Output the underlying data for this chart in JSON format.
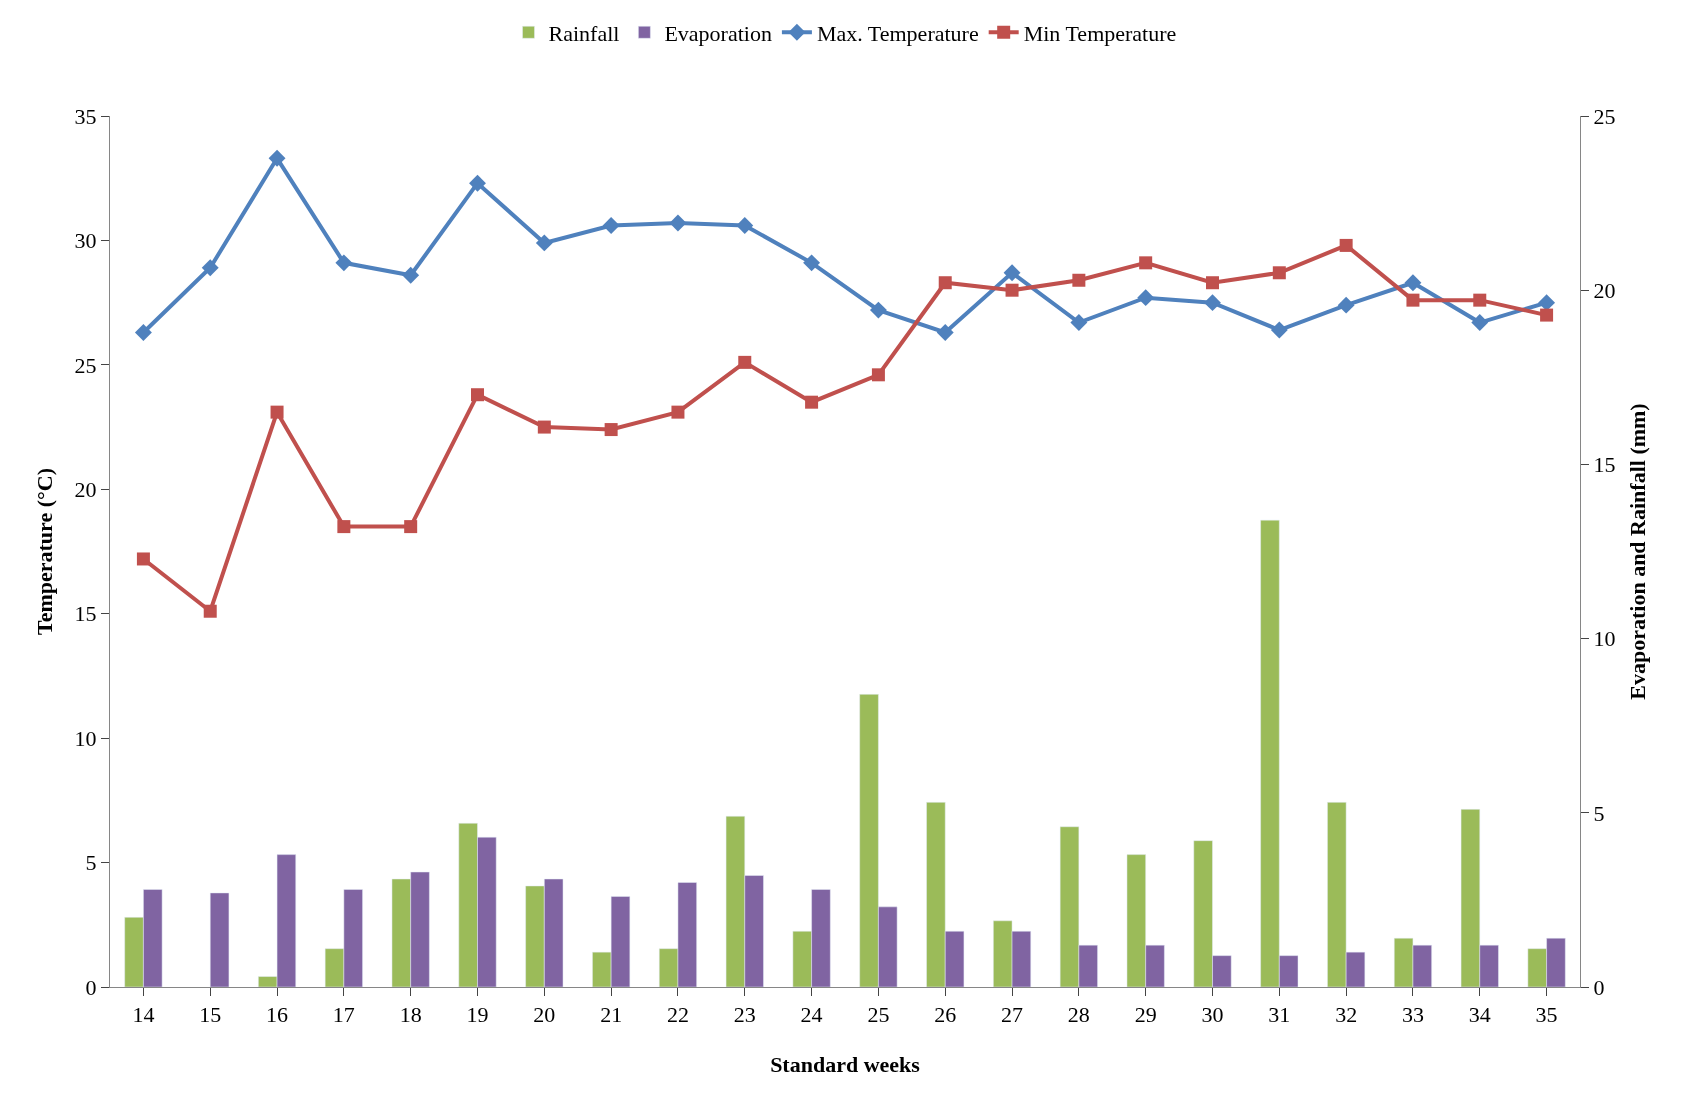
{
  "chart_data": {
    "type": "bar",
    "xlabel": "Standard weeks",
    "ylabel": "Temperature (°C)",
    "y2label": "Evaporation and Rainfall (mm)",
    "categories": [
      "14",
      "15",
      "16",
      "17",
      "18",
      "19",
      "20",
      "21",
      "22",
      "23",
      "24",
      "25",
      "26",
      "27",
      "28",
      "29",
      "30",
      "31",
      "32",
      "33",
      "34",
      "35"
    ],
    "series": [
      {
        "name": "Rainfall",
        "axis": "y2",
        "color": "#9bbb59",
        "values": [
          2.0,
          null,
          0.3,
          1.1,
          3.1,
          4.7,
          2.9,
          1.0,
          1.1,
          4.9,
          1.6,
          8.4,
          5.3,
          1.9,
          4.6,
          3.8,
          4.2,
          13.4,
          5.3,
          1.4,
          5.1,
          1.1
        ]
      },
      {
        "name": "Evaporation",
        "axis": "y2",
        "color": "#8064a2",
        "values": [
          2.8,
          2.7,
          3.8,
          2.8,
          3.3,
          4.3,
          3.1,
          2.6,
          3.0,
          3.2,
          2.8,
          2.3,
          1.6,
          1.6,
          1.2,
          1.2,
          0.9,
          0.9,
          1.0,
          1.2,
          1.2,
          1.4
        ]
      },
      {
        "name": "Max. Temperature",
        "type": "line",
        "marker": "diamond",
        "color": "#4f81bd",
        "values": [
          26.3,
          28.9,
          33.3,
          29.1,
          28.6,
          32.3,
          29.9,
          30.6,
          30.7,
          30.6,
          29.1,
          27.2,
          26.3,
          28.7,
          26.7,
          27.7,
          27.5,
          26.4,
          27.4,
          28.3,
          26.7,
          27.5
        ]
      },
      {
        "name": "Min Temperature",
        "type": "line",
        "marker": "square",
        "color": "#c0504d",
        "values": [
          17.2,
          15.1,
          23.1,
          18.5,
          18.5,
          23.8,
          22.5,
          22.4,
          23.1,
          25.1,
          23.5,
          24.6,
          28.3,
          28.0,
          28.4,
          29.1,
          28.3,
          28.7,
          29.8,
          27.6,
          27.6,
          27.0
        ]
      }
    ],
    "ylim": [
      0,
      35
    ],
    "yticks": [
      0,
      5,
      10,
      15,
      20,
      25,
      30,
      35
    ],
    "y2lim": [
      0,
      25
    ],
    "y2ticks": [
      0,
      5,
      10,
      15,
      20,
      25
    ],
    "legend": "top"
  }
}
